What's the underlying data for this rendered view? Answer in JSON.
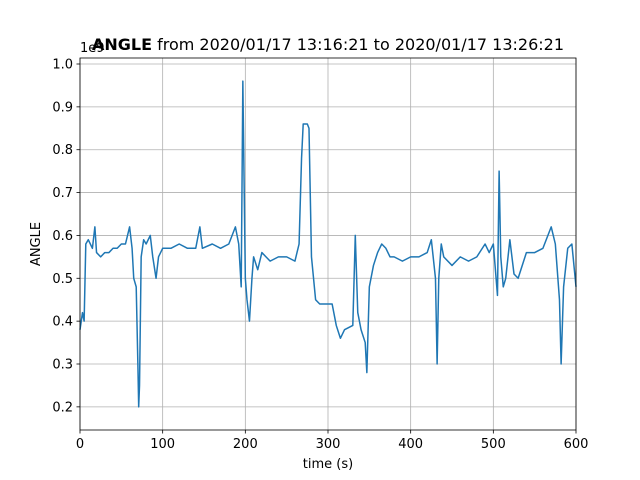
{
  "chart_data": {
    "type": "line",
    "title": {
      "bold": "ANGLE",
      "rest": "from 2020/01/17 13:16:21 to 2020/01/17 13:26:21"
    },
    "offset_text": "1e9",
    "xlabel": "time (s)",
    "ylabel": "ANGLE",
    "color": "#1f77b4",
    "grid": true,
    "xlim": [
      0,
      600
    ],
    "ylim": [
      0.146,
      1.014
    ],
    "xticks": [
      0,
      100,
      200,
      300,
      400,
      500,
      600
    ],
    "yticks": [
      0.2,
      0.3,
      0.4,
      0.5,
      0.6,
      0.7,
      0.8,
      0.9,
      {
        "value": 1,
        "label": "1.0"
      }
    ],
    "x": [
      0,
      3,
      5,
      7,
      10,
      15,
      18,
      20,
      25,
      30,
      35,
      40,
      45,
      50,
      55,
      60,
      63,
      65,
      68,
      70,
      71,
      72,
      74,
      77,
      80,
      85,
      88,
      92,
      95,
      100,
      110,
      120,
      130,
      140,
      145,
      148,
      160,
      170,
      180,
      188,
      192,
      195,
      197,
      198,
      200,
      202,
      205,
      208,
      210,
      215,
      220,
      225,
      230,
      240,
      250,
      260,
      265,
      268,
      270,
      275,
      277,
      280,
      285,
      290,
      300,
      305,
      310,
      315,
      320,
      330,
      333,
      336,
      340,
      345,
      347,
      350,
      355,
      360,
      365,
      370,
      375,
      380,
      390,
      400,
      410,
      420,
      425,
      430,
      432,
      434,
      437,
      440,
      450,
      460,
      470,
      480,
      490,
      495,
      500,
      505,
      507,
      509,
      512,
      515,
      520,
      525,
      530,
      540,
      550,
      560,
      570,
      575,
      580,
      582,
      585,
      590,
      595,
      600
    ],
    "values": [
      0.38,
      0.42,
      0.4,
      0.58,
      0.59,
      0.57,
      0.62,
      0.56,
      0.55,
      0.56,
      0.56,
      0.57,
      0.57,
      0.58,
      0.58,
      0.62,
      0.57,
      0.5,
      0.48,
      0.3,
      0.2,
      0.25,
      0.55,
      0.59,
      0.58,
      0.6,
      0.55,
      0.5,
      0.55,
      0.57,
      0.57,
      0.58,
      0.57,
      0.57,
      0.62,
      0.57,
      0.58,
      0.57,
      0.58,
      0.62,
      0.58,
      0.48,
      0.96,
      0.8,
      0.5,
      0.45,
      0.4,
      0.5,
      0.55,
      0.52,
      0.56,
      0.55,
      0.54,
      0.55,
      0.55,
      0.54,
      0.58,
      0.78,
      0.86,
      0.86,
      0.85,
      0.55,
      0.45,
      0.44,
      0.44,
      0.44,
      0.39,
      0.36,
      0.38,
      0.39,
      0.6,
      0.42,
      0.38,
      0.35,
      0.28,
      0.48,
      0.53,
      0.56,
      0.58,
      0.57,
      0.55,
      0.55,
      0.54,
      0.55,
      0.55,
      0.56,
      0.59,
      0.5,
      0.3,
      0.5,
      0.58,
      0.55,
      0.53,
      0.55,
      0.54,
      0.55,
      0.58,
      0.56,
      0.58,
      0.46,
      0.75,
      0.55,
      0.48,
      0.5,
      0.59,
      0.51,
      0.5,
      0.56,
      0.56,
      0.57,
      0.62,
      0.58,
      0.45,
      0.3,
      0.48,
      0.57,
      0.58,
      0.48
    ]
  }
}
